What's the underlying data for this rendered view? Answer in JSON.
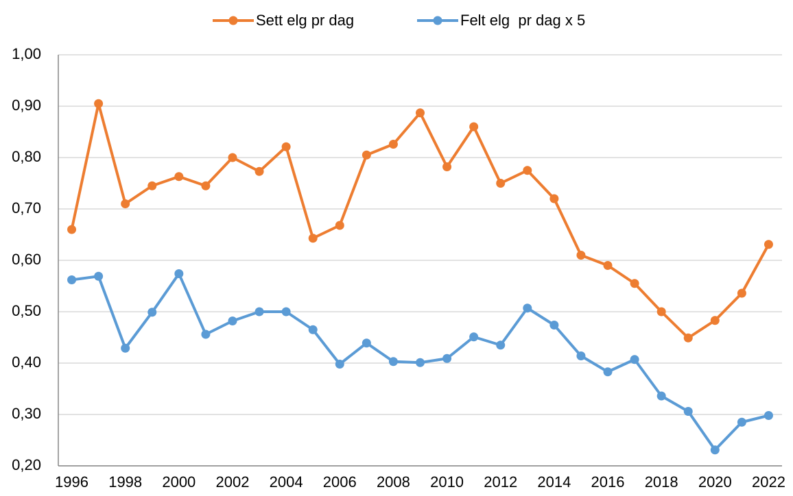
{
  "chart_data": {
    "type": "line",
    "x": [
      1996,
      1997,
      1998,
      1999,
      2000,
      2001,
      2002,
      2003,
      2004,
      2005,
      2006,
      2007,
      2008,
      2009,
      2010,
      2011,
      2012,
      2013,
      2014,
      2015,
      2016,
      2017,
      2018,
      2019,
      2020,
      2021,
      2022
    ],
    "series": [
      {
        "name": "Sett elg pr dag",
        "color": "#ED7D31",
        "values": [
          0.66,
          0.905,
          0.71,
          0.745,
          0.763,
          0.745,
          0.8,
          0.773,
          0.821,
          0.643,
          0.668,
          0.805,
          0.826,
          0.887,
          0.782,
          0.86,
          0.75,
          0.775,
          0.72,
          0.61,
          0.59,
          0.555,
          0.5,
          0.449,
          0.483,
          0.536,
          0.631
        ]
      },
      {
        "name": "Felt elg  pr dag x 5",
        "color": "#5B9BD5",
        "values": [
          0.562,
          0.569,
          0.429,
          0.499,
          0.574,
          0.456,
          0.482,
          0.5,
          0.5,
          0.465,
          0.398,
          0.439,
          0.403,
          0.401,
          0.409,
          0.451,
          0.435,
          0.507,
          0.474,
          0.414,
          0.383,
          0.407,
          0.336,
          0.306,
          0.231,
          0.285,
          0.298
        ]
      }
    ],
    "xlim": [
      1995.5,
      2022.5
    ],
    "xticks": [
      1996,
      1998,
      2000,
      2002,
      2004,
      2006,
      2008,
      2010,
      2012,
      2014,
      2016,
      2018,
      2020,
      2022
    ],
    "ylim": [
      0.2,
      1.0
    ],
    "yticks": [
      {
        "value": 0.2,
        "label": "0,20"
      },
      {
        "value": 0.3,
        "label": "0,30"
      },
      {
        "value": 0.4,
        "label": "0,40"
      },
      {
        "value": 0.5,
        "label": "0,50"
      },
      {
        "value": 0.6,
        "label": "0,60"
      },
      {
        "value": 0.7,
        "label": "0,70"
      },
      {
        "value": 0.8,
        "label": "0,80"
      },
      {
        "value": 0.9,
        "label": "0,90"
      },
      {
        "value": 1.0,
        "label": "1,00"
      }
    ],
    "grid": true,
    "legend": "top"
  }
}
